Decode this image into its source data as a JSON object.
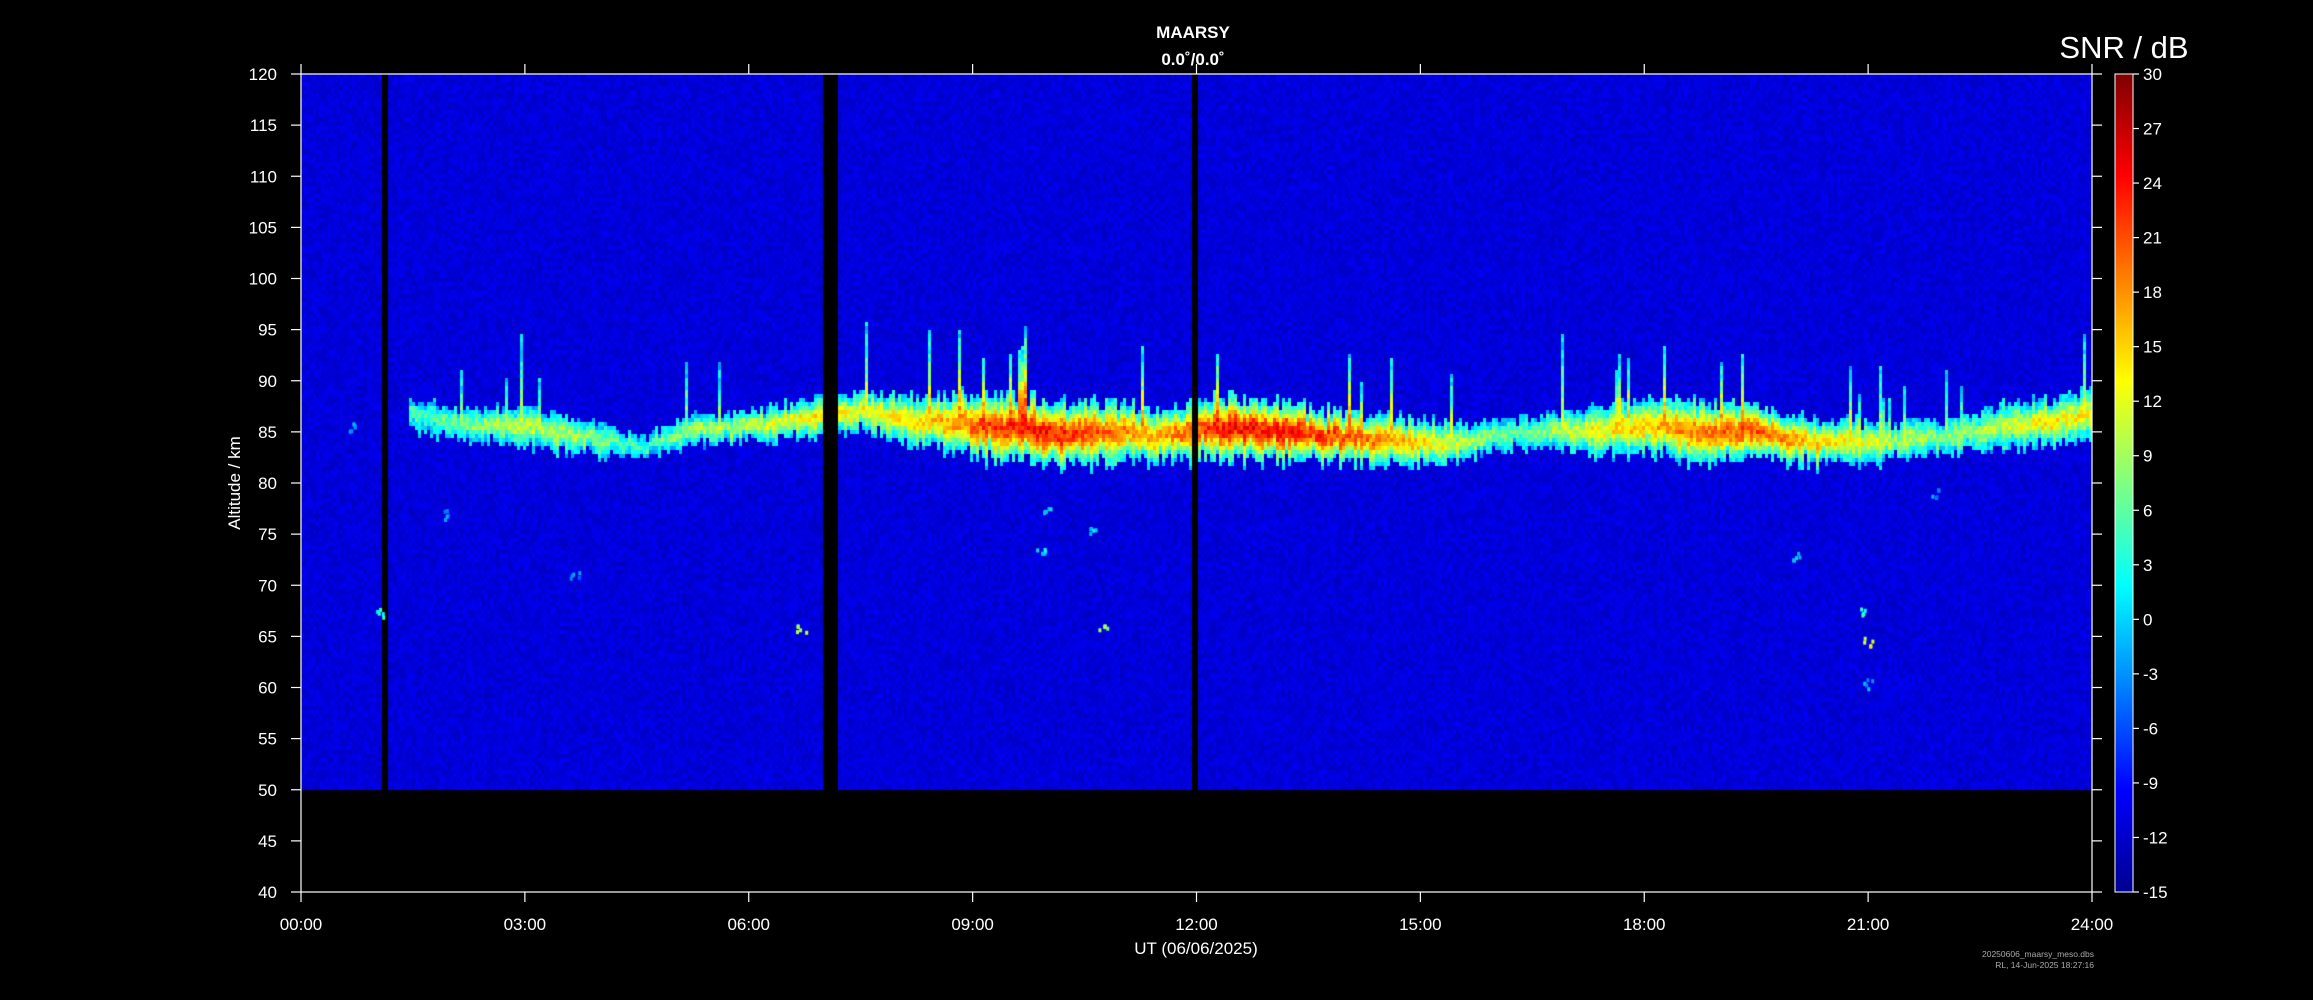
{
  "chart_data": {
    "type": "heatmap",
    "title": "MAARSY",
    "subtitle": "0.0˚/0.0˚",
    "xlabel": "UT (06/06/2025)",
    "ylabel": "Altitude / km",
    "xlim_hours": [
      0,
      24
    ],
    "ylim": [
      40,
      120
    ],
    "x_ticks": [
      "00:00",
      "03:00",
      "06:00",
      "09:00",
      "12:00",
      "15:00",
      "18:00",
      "21:00",
      "24:00"
    ],
    "x_tick_hours": [
      0,
      3,
      6,
      9,
      12,
      15,
      18,
      21,
      24
    ],
    "y_ticks": [
      40,
      45,
      50,
      55,
      60,
      65,
      70,
      75,
      80,
      85,
      90,
      95,
      100,
      105,
      110,
      115,
      120
    ],
    "colorbar": {
      "label": "SNR / dB",
      "range": [
        -15,
        30
      ],
      "ticks": [
        -15,
        -12,
        -9,
        -6,
        -3,
        0,
        3,
        6,
        9,
        12,
        15,
        18,
        21,
        24,
        27,
        30
      ],
      "colormap": "jet"
    },
    "background_snr_db": -11,
    "data_floor_km": 50,
    "data_gaps_hours": [
      [
        1.08,
        1.15
      ],
      [
        6.98,
        7.2
      ],
      [
        11.95,
        12.0
      ]
    ],
    "echo_layer_profile": [
      {
        "time": 1.6,
        "center_km": 86.5,
        "half_width_km": 1.2,
        "snr_db": 5
      },
      {
        "time": 2.3,
        "center_km": 85.5,
        "half_width_km": 1.2,
        "snr_db": 8
      },
      {
        "time": 3.0,
        "center_km": 85.5,
        "half_width_km": 1.5,
        "snr_db": 10
      },
      {
        "time": 3.8,
        "center_km": 84.5,
        "half_width_km": 1.4,
        "snr_db": 9
      },
      {
        "time": 4.6,
        "center_km": 83.5,
        "half_width_km": 0.8,
        "snr_db": 4
      },
      {
        "time": 5.2,
        "center_km": 85.0,
        "half_width_km": 1.2,
        "snr_db": 9
      },
      {
        "time": 6.0,
        "center_km": 85.5,
        "half_width_km": 1.2,
        "snr_db": 10
      },
      {
        "time": 6.9,
        "center_km": 86.5,
        "half_width_km": 1.5,
        "snr_db": 14
      },
      {
        "time": 7.5,
        "center_km": 87.0,
        "half_width_km": 1.5,
        "snr_db": 13
      },
      {
        "time": 8.3,
        "center_km": 86.0,
        "half_width_km": 2.0,
        "snr_db": 14
      },
      {
        "time": 9.2,
        "center_km": 85.5,
        "half_width_km": 2.5,
        "snr_db": 22
      },
      {
        "time": 10.0,
        "center_km": 85.0,
        "half_width_km": 2.5,
        "snr_db": 24
      },
      {
        "time": 10.8,
        "center_km": 85.0,
        "half_width_km": 2.3,
        "snr_db": 20
      },
      {
        "time": 11.5,
        "center_km": 84.5,
        "half_width_km": 2.0,
        "snr_db": 17
      },
      {
        "time": 12.4,
        "center_km": 85.5,
        "half_width_km": 2.5,
        "snr_db": 24
      },
      {
        "time": 13.2,
        "center_km": 85.0,
        "half_width_km": 2.3,
        "snr_db": 24
      },
      {
        "time": 14.0,
        "center_km": 84.5,
        "half_width_km": 2.0,
        "snr_db": 21
      },
      {
        "time": 14.8,
        "center_km": 84.0,
        "half_width_km": 1.8,
        "snr_db": 16
      },
      {
        "time": 15.6,
        "center_km": 84.0,
        "half_width_km": 1.5,
        "snr_db": 10
      },
      {
        "time": 16.3,
        "center_km": 85.0,
        "half_width_km": 1.2,
        "snr_db": 6
      },
      {
        "time": 17.2,
        "center_km": 85.0,
        "half_width_km": 1.8,
        "snr_db": 12
      },
      {
        "time": 18.0,
        "center_km": 85.5,
        "half_width_km": 2.2,
        "snr_db": 16
      },
      {
        "time": 18.8,
        "center_km": 85.0,
        "half_width_km": 2.3,
        "snr_db": 19
      },
      {
        "time": 19.5,
        "center_km": 85.0,
        "half_width_km": 2.0,
        "snr_db": 21
      },
      {
        "time": 20.3,
        "center_km": 84.0,
        "half_width_km": 1.8,
        "snr_db": 15
      },
      {
        "time": 21.2,
        "center_km": 84.0,
        "half_width_km": 1.5,
        "snr_db": 11
      },
      {
        "time": 22.0,
        "center_km": 84.5,
        "half_width_km": 1.2,
        "snr_db": 8
      },
      {
        "time": 22.8,
        "center_km": 85.5,
        "half_width_km": 1.8,
        "snr_db": 11
      },
      {
        "time": 23.5,
        "center_km": 86.0,
        "half_width_km": 2.0,
        "snr_db": 14
      },
      {
        "time": 24.0,
        "center_km": 86.5,
        "half_width_km": 2.0,
        "snr_db": 13
      }
    ],
    "scattered_echoes": [
      {
        "time": 0.7,
        "alt_km": 85.5,
        "snr_db": -2
      },
      {
        "time": 1.06,
        "alt_km": 67.5,
        "snr_db": 3
      },
      {
        "time": 1.9,
        "alt_km": 77,
        "snr_db": -3
      },
      {
        "time": 3.65,
        "alt_km": 71,
        "snr_db": -3
      },
      {
        "time": 6.7,
        "alt_km": 66,
        "snr_db": 10
      },
      {
        "time": 10.0,
        "alt_km": 77.5,
        "snr_db": -1
      },
      {
        "time": 9.9,
        "alt_km": 73.5,
        "snr_db": 1
      },
      {
        "time": 10.6,
        "alt_km": 75.5,
        "snr_db": 0
      },
      {
        "time": 10.75,
        "alt_km": 66,
        "snr_db": 8
      },
      {
        "time": 20.0,
        "alt_km": 73,
        "snr_db": -1
      },
      {
        "time": 20.95,
        "alt_km": 67.5,
        "snr_db": 4
      },
      {
        "time": 21.0,
        "alt_km": 64.5,
        "snr_db": 12
      },
      {
        "time": 21.0,
        "alt_km": 60.5,
        "snr_db": -2
      },
      {
        "time": 21.9,
        "alt_km": 79,
        "snr_db": -3
      }
    ]
  },
  "footer": {
    "file_name": "20250606_maarsy_meso.dbs",
    "stamp": "RL, 14-Jun-2025 18:27:16"
  }
}
